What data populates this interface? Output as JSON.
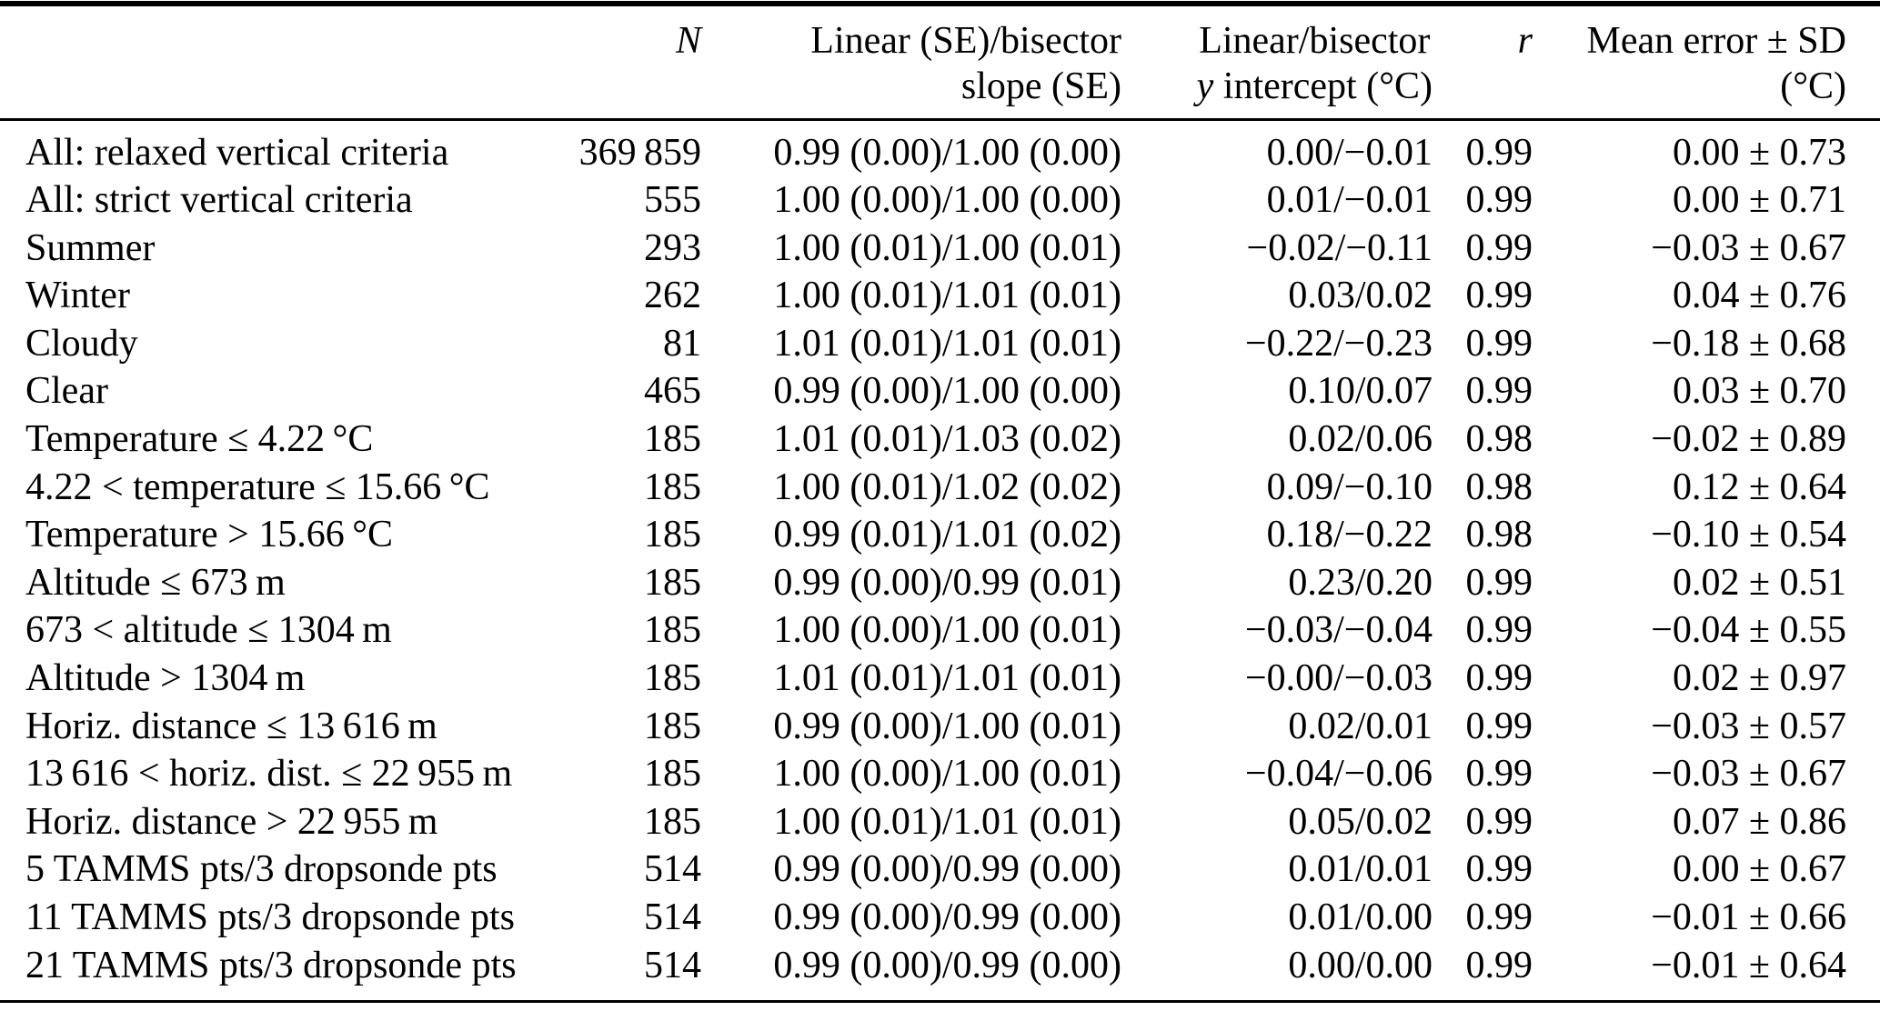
{
  "page": {
    "background_color": "#ffffff",
    "text_color": "#000000"
  },
  "table": {
    "headers": {
      "row_label": "",
      "n_italic": "N",
      "slope": [
        "Linear (SE)/bisector",
        "slope (SE)"
      ],
      "intercept": {
        "line1": "Linear/bisector",
        "line2_italic": "y",
        "line2_rest": " intercept (°C)"
      },
      "r_italic": "r",
      "mean_error": [
        "Mean error ± SD",
        "(°C)"
      ]
    },
    "rows": [
      {
        "label": "All: relaxed vertical criteria",
        "n": "369 859",
        "slope": "0.99 (0.00)/1.00 (0.00)",
        "intercept": "0.00/−0.01",
        "r": "0.99",
        "mean_error": "0.00 ± 0.73"
      },
      {
        "label": "All: strict vertical criteria",
        "n": "555",
        "slope": "1.00 (0.00)/1.00 (0.00)",
        "intercept": "0.01/−0.01",
        "r": "0.99",
        "mean_error": "0.00 ± 0.71"
      },
      {
        "label": "Summer",
        "n": "293",
        "slope": "1.00 (0.01)/1.00 (0.01)",
        "intercept": "−0.02/−0.11",
        "r": "0.99",
        "mean_error": "−0.03 ± 0.67"
      },
      {
        "label": "Winter",
        "n": "262",
        "slope": "1.00 (0.01)/1.01 (0.01)",
        "intercept": "0.03/0.02",
        "r": "0.99",
        "mean_error": "0.04 ± 0.76"
      },
      {
        "label": "Cloudy",
        "n": "81",
        "slope": "1.01 (0.01)/1.01 (0.01)",
        "intercept": "−0.22/−0.23",
        "r": "0.99",
        "mean_error": "−0.18 ± 0.68"
      },
      {
        "label": "Clear",
        "n": "465",
        "slope": "0.99 (0.00)/1.00 (0.00)",
        "intercept": "0.10/0.07",
        "r": "0.99",
        "mean_error": "0.03 ± 0.70"
      },
      {
        "label": "Temperature ≤ 4.22 °C",
        "n": "185",
        "slope": "1.01 (0.01)/1.03 (0.02)",
        "intercept": "0.02/0.06",
        "r": "0.98",
        "mean_error": "−0.02 ± 0.89"
      },
      {
        "label": "4.22 < temperature ≤ 15.66 °C",
        "n": "185",
        "slope": "1.00 (0.01)/1.02 (0.02)",
        "intercept": "0.09/−0.10",
        "r": "0.98",
        "mean_error": "0.12 ± 0.64"
      },
      {
        "label": "Temperature > 15.66 °C",
        "n": "185",
        "slope": "0.99 (0.01)/1.01 (0.02)",
        "intercept": "0.18/−0.22",
        "r": "0.98",
        "mean_error": "−0.10 ± 0.54"
      },
      {
        "label": "Altitude ≤ 673 m",
        "n": "185",
        "slope": "0.99 (0.00)/0.99 (0.01)",
        "intercept": "0.23/0.20",
        "r": "0.99",
        "mean_error": "0.02 ± 0.51"
      },
      {
        "label": "673 < altitude ≤ 1304 m",
        "n": "185",
        "slope": "1.00 (0.00)/1.00 (0.01)",
        "intercept": "−0.03/−0.04",
        "r": "0.99",
        "mean_error": "−0.04 ± 0.55"
      },
      {
        "label": "Altitude > 1304 m",
        "n": "185",
        "slope": "1.01 (0.01)/1.01 (0.01)",
        "intercept": "−0.00/−0.03",
        "r": "0.99",
        "mean_error": "0.02 ± 0.97"
      },
      {
        "label": "Horiz. distance ≤ 13 616 m",
        "n": "185",
        "slope": "0.99 (0.00)/1.00 (0.01)",
        "intercept": "0.02/0.01",
        "r": "0.99",
        "mean_error": "−0.03 ± 0.57"
      },
      {
        "label": "13 616 < horiz. dist. ≤ 22 955 m",
        "n": "185",
        "slope": "1.00 (0.00)/1.00 (0.01)",
        "intercept": "−0.04/−0.06",
        "r": "0.99",
        "mean_error": "−0.03 ± 0.67"
      },
      {
        "label": "Horiz. distance > 22 955 m",
        "n": "185",
        "slope": "1.00 (0.01)/1.01 (0.01)",
        "intercept": "0.05/0.02",
        "r": "0.99",
        "mean_error": "0.07 ± 0.86"
      },
      {
        "label": "5 TAMMS pts/3 dropsonde pts",
        "n": "514",
        "slope": "0.99 (0.00)/0.99 (0.00)",
        "intercept": "0.01/0.01",
        "r": "0.99",
        "mean_error": "0.00 ± 0.67"
      },
      {
        "label": "11 TAMMS pts/3 dropsonde pts",
        "n": "514",
        "slope": "0.99 (0.00)/0.99 (0.00)",
        "intercept": "0.01/0.00",
        "r": "0.99",
        "mean_error": "−0.01 ± 0.66"
      },
      {
        "label": "21 TAMMS pts/3 dropsonde pts",
        "n": "514",
        "slope": "0.99 (0.00)/0.99 (0.00)",
        "intercept": "0.00/0.00",
        "r": "0.99",
        "mean_error": "−0.01 ± 0.64"
      }
    ]
  }
}
